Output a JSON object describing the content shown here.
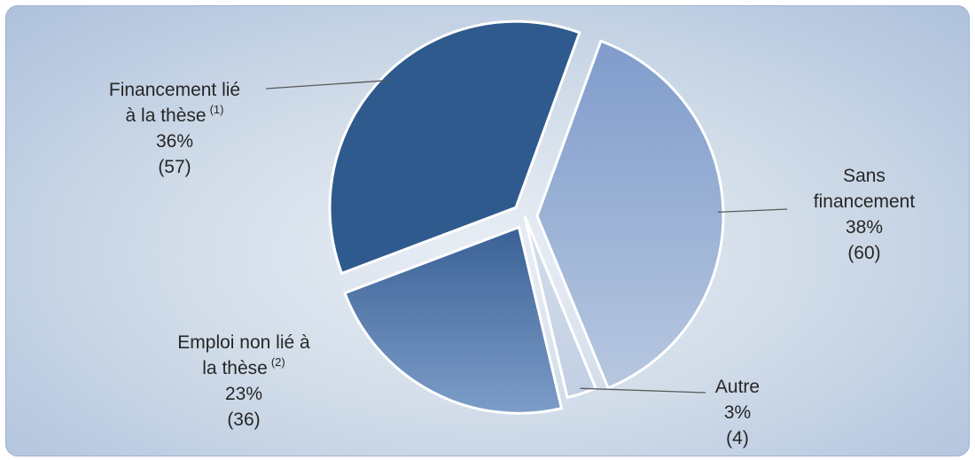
{
  "chart_data": {
    "type": "pie",
    "title": "",
    "slices": [
      {
        "key": "sans",
        "label_lines": [
          "Sans",
          "financement"
        ],
        "label_sup": "",
        "percent_label": "38%",
        "count_label": "(60)",
        "value": 60,
        "exploded": true,
        "color": "#9fb3d4"
      },
      {
        "key": "autre",
        "label_lines": [
          "Autre"
        ],
        "label_sup": "",
        "percent_label": "3%",
        "count_label": "(4)",
        "value": 4,
        "exploded": false,
        "color": "#cbd6e6"
      },
      {
        "key": "emploi",
        "label_lines": [
          "Emploi non lié à",
          "la thèse"
        ],
        "label_sup": "(2)",
        "percent_label": "23%",
        "count_label": "(36)",
        "value": 36,
        "exploded": true,
        "color": "#5a7fad"
      },
      {
        "key": "fin",
        "label_lines": [
          "Financement lié",
          "à la thèse"
        ],
        "label_sup": "(1)",
        "percent_label": "36%",
        "count_label": "(57)",
        "value": 57,
        "exploded": true,
        "color": "#365f91"
      }
    ]
  }
}
